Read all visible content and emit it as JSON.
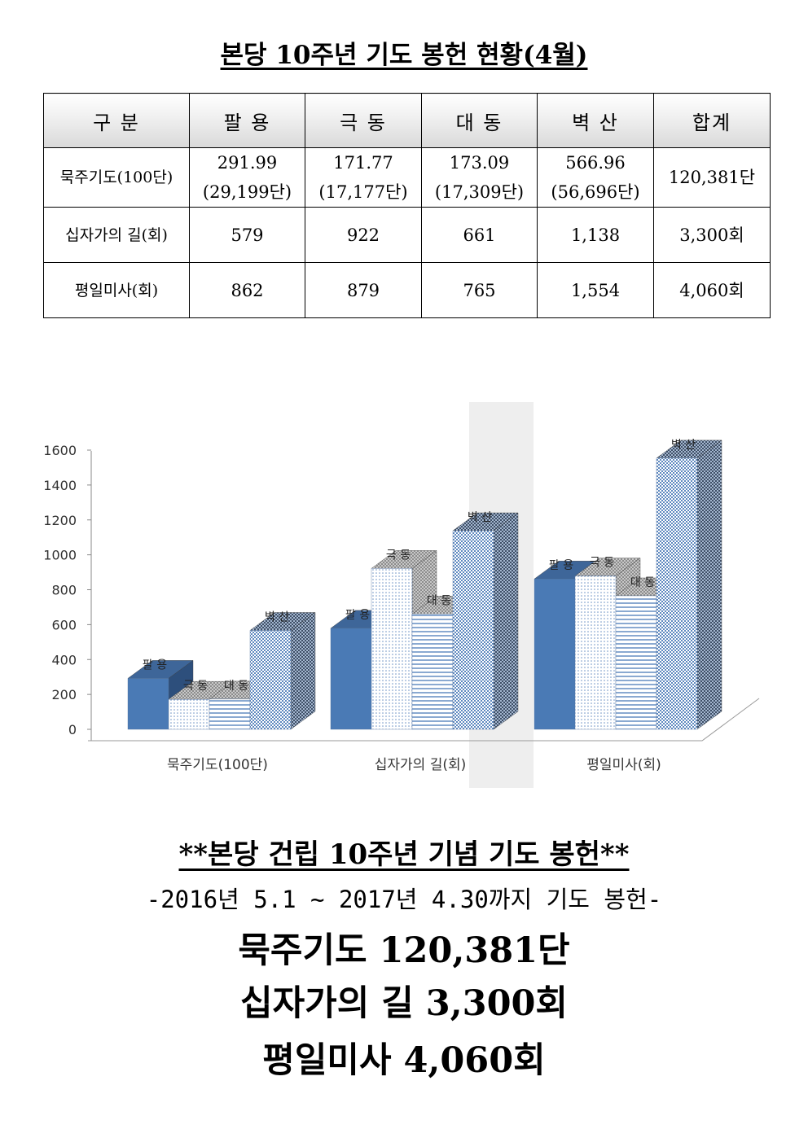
{
  "title": "본당 10주년 기도 봉헌 현황(4월)",
  "table": {
    "headers": [
      "구  분",
      "팔  용",
      "극  동",
      "대  동",
      "벽  산",
      "합계"
    ],
    "rows": [
      {
        "label": "묵주기도(100단)",
        "cells": [
          {
            "main": "291.99",
            "sub": "(29,199단)"
          },
          {
            "main": "171.77",
            "sub": "(17,177단)"
          },
          {
            "main": "173.09",
            "sub": "(17,309단)"
          },
          {
            "main": "566.96",
            "sub": "(56,696단)"
          }
        ],
        "total": "120,381단"
      },
      {
        "label": "십자가의 길(회)",
        "cells": [
          {
            "main": "579"
          },
          {
            "main": "922"
          },
          {
            "main": "661"
          },
          {
            "main": "1,138"
          }
        ],
        "total": "3,300회"
      },
      {
        "label": "평일미사(회)",
        "cells": [
          {
            "main": "862"
          },
          {
            "main": "879"
          },
          {
            "main": "765"
          },
          {
            "main": "1,554"
          }
        ],
        "total": "4,060회"
      }
    ]
  },
  "chart_data": {
    "type": "bar",
    "style": "3d-clustered-column",
    "categories": [
      "묵주기도(100단)",
      "십자가의 길(회)",
      "평일미사(회)"
    ],
    "series": [
      {
        "name": "팔 용",
        "values": [
          291.99,
          579,
          862
        ],
        "color": "#4a7ab5"
      },
      {
        "name": "극 동",
        "values": [
          171.77,
          922,
          879
        ],
        "color": "#dce7f3"
      },
      {
        "name": "대 동",
        "values": [
          173.09,
          661,
          765
        ],
        "color": "#9fb8d8"
      },
      {
        "name": "벽 산",
        "values": [
          566.96,
          1138,
          1554
        ],
        "color": "#7aa1cf"
      }
    ],
    "ylim": [
      0,
      1600
    ],
    "yticks": [
      "0",
      "200",
      "400",
      "600",
      "800",
      "1000",
      "1200",
      "1400",
      "1600"
    ],
    "grid": false,
    "legend": "none",
    "data_labels": "series name above each bar"
  },
  "summary": {
    "heading": "**본당 건립 10주년 기념 기도 봉헌**",
    "period": "-2016년 5.1 ~ 2017년 4.30까지 기도 봉헌-",
    "lines": [
      "묵주기도 120,381단",
      "십자가의 길 3,300회",
      "평일미사 4,060회"
    ]
  }
}
